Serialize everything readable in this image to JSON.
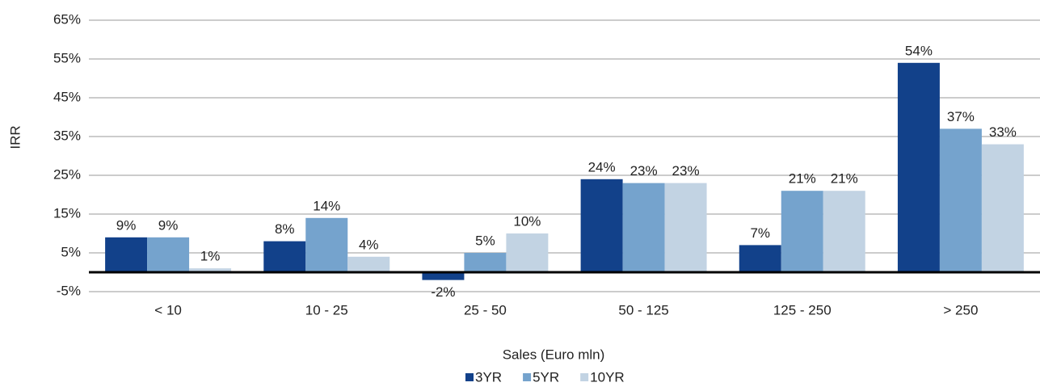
{
  "chart_data": {
    "type": "bar",
    "y_label": "IRR",
    "x_label": "Sales (Euro mln)",
    "categories": [
      "< 10",
      "10 - 25",
      "25 - 50",
      "50 - 125",
      "125 - 250",
      "> 250"
    ],
    "series": [
      {
        "name": "3YR",
        "color": "#12418a",
        "values": [
          9,
          8,
          -2,
          24,
          7,
          54
        ],
        "value_labels": [
          "9%",
          "8%",
          "-2%",
          "24%",
          "7%",
          "54%"
        ]
      },
      {
        "name": "5YR",
        "color": "#75a3cd",
        "values": [
          9,
          14,
          5,
          23,
          21,
          37
        ],
        "value_labels": [
          "9%",
          "14%",
          "5%",
          "23%",
          "21%",
          "37%"
        ]
      },
      {
        "name": "10YR",
        "color": "#c2d3e3",
        "values": [
          1,
          4,
          10,
          23,
          21,
          33
        ],
        "value_labels": [
          "1%",
          "4%",
          "10%",
          "23%",
          "21%",
          "33%"
        ]
      }
    ],
    "ylim": [
      -5,
      65
    ],
    "yticks": [
      {
        "value": -5,
        "label": "-5%"
      },
      {
        "value": 5,
        "label": "5%"
      },
      {
        "value": 15,
        "label": "15%"
      },
      {
        "value": 25,
        "label": "25%"
      },
      {
        "value": 35,
        "label": "35%"
      },
      {
        "value": 45,
        "label": "45%"
      },
      {
        "value": 55,
        "label": "55%"
      },
      {
        "value": 65,
        "label": "65%"
      }
    ],
    "grid": true,
    "legend": "bottom"
  }
}
